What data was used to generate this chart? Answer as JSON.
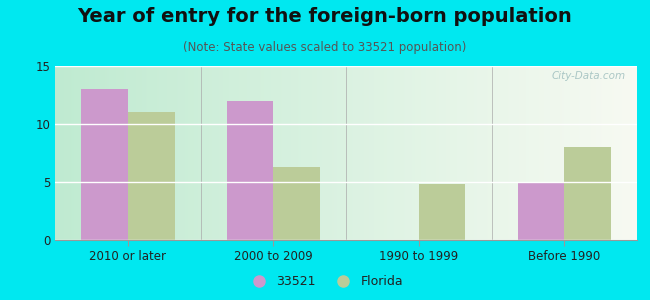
{
  "title": "Year of entry for the foreign-born population",
  "subtitle": "(Note: State values scaled to 33521 population)",
  "categories": [
    "2010 or later",
    "2000 to 2009",
    "1990 to 1999",
    "Before 1990"
  ],
  "values_33521": [
    13,
    12,
    0,
    5
  ],
  "values_florida": [
    11,
    6.3,
    4.8,
    8
  ],
  "color_33521": "#cc99cc",
  "color_florida": "#bbcc99",
  "ylim": [
    0,
    15
  ],
  "yticks": [
    0,
    5,
    10,
    15
  ],
  "background_outer": "#00e8f0",
  "legend_labels": [
    "33521",
    "Florida"
  ],
  "bar_width": 0.32,
  "title_fontsize": 14,
  "subtitle_fontsize": 8.5,
  "watermark": "City-Data.com"
}
